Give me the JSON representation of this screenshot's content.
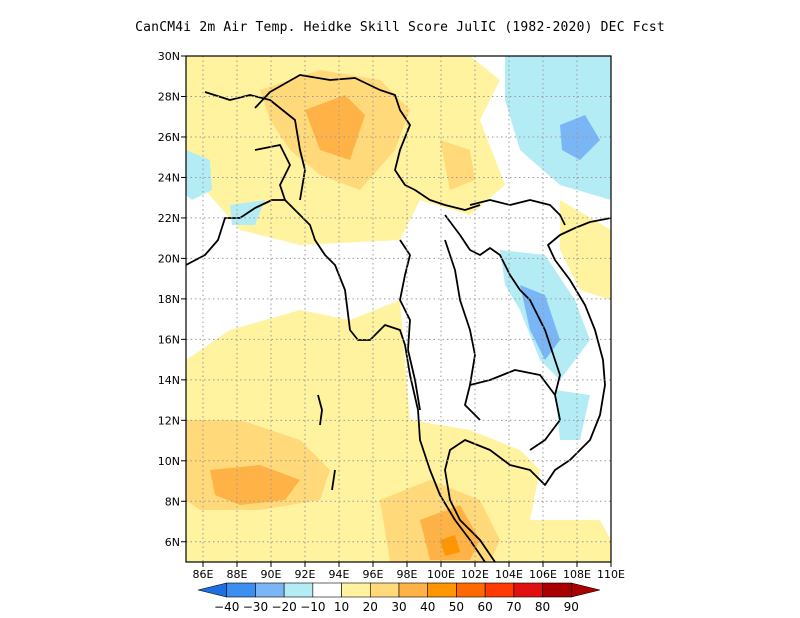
{
  "title": "CanCM4i  2m Air Temp. Heidke Skill Score JulIC (1982-2020) DEC Fcst",
  "axes": {
    "lat_labels": [
      "30N",
      "28N",
      "26N",
      "24N",
      "22N",
      "20N",
      "18N",
      "16N",
      "14N",
      "12N",
      "10N",
      "8N",
      "6N"
    ],
    "lon_labels": [
      "86E",
      "88E",
      "90E",
      "92E",
      "94E",
      "96E",
      "98E",
      "100E",
      "102E",
      "104E",
      "106E",
      "108E",
      "110E"
    ]
  },
  "colorbar": {
    "labels": [
      "-40",
      "-30",
      "-20",
      "-10",
      "10",
      "20",
      "30",
      "40",
      "50",
      "60",
      "70",
      "80",
      "90"
    ],
    "colors": [
      "#1e6fe0",
      "#3c8ff0",
      "#7ab6f5",
      "#b4ecf6",
      "#ffffff",
      "#fff3a0",
      "#ffd97a",
      "#ffb347",
      "#ff9500",
      "#ff6a00",
      "#ff3a00",
      "#e01010",
      "#a80000"
    ]
  },
  "map": {
    "region": "Mainland Southeast Asia",
    "lon_range": [
      85,
      110
    ],
    "lat_range": [
      5,
      30
    ],
    "grid": "dotted"
  }
}
